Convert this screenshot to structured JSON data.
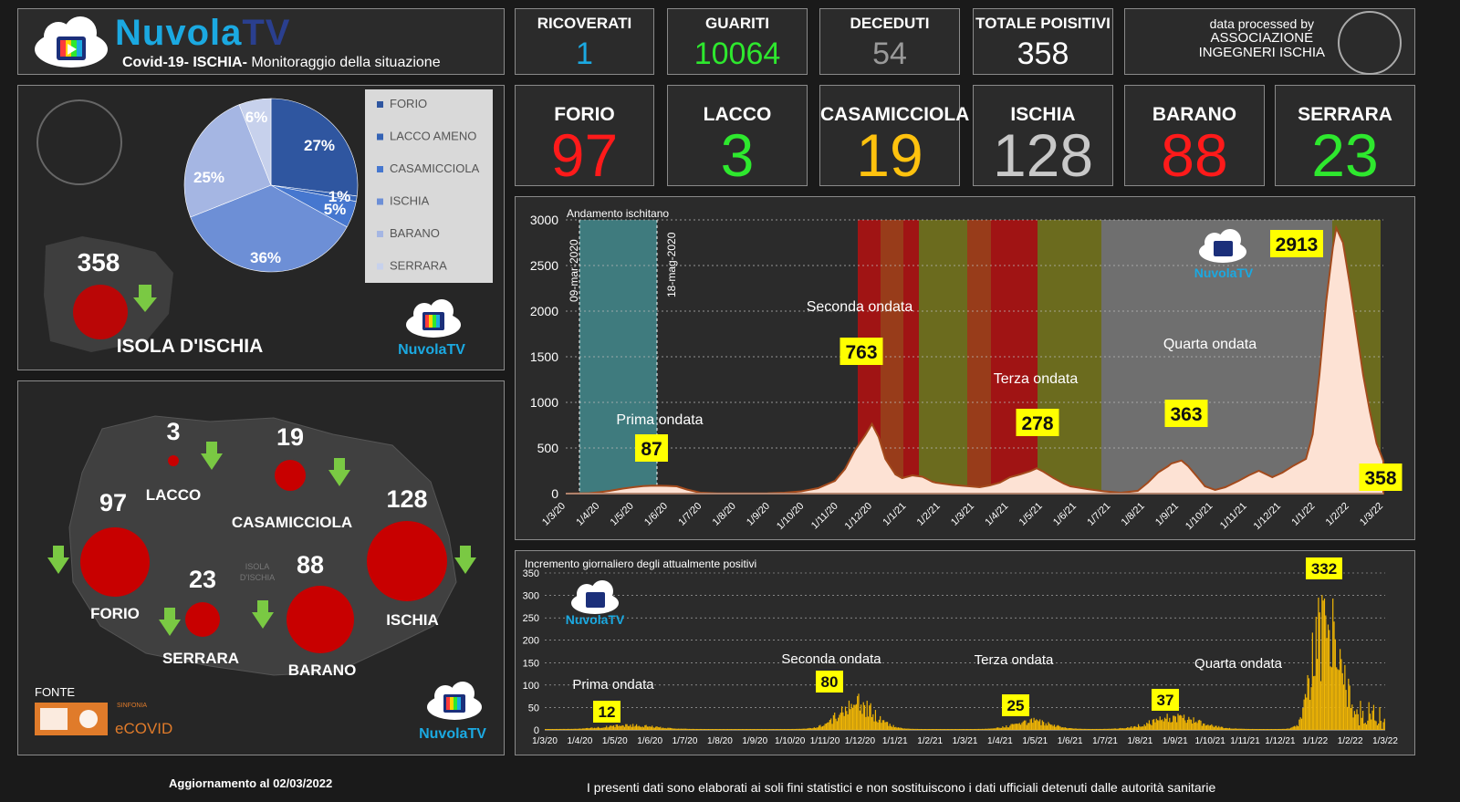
{
  "brand": {
    "name_part1": "Nuvola",
    "name_part2": "TV",
    "subtitle_bold": "Covid-19- ISCHIA-",
    "subtitle": " Monitoraggio della situazione",
    "small_logo": "NuvolaTV"
  },
  "stats": [
    {
      "label": "RICOVERATI",
      "value": "1",
      "color": "#1ba9e1"
    },
    {
      "label": "GUARITI",
      "value": "10064",
      "color": "#2ee82e"
    },
    {
      "label": "DECEDUTI",
      "value": "54",
      "color": "#9a9a9a"
    },
    {
      "label": "TOTALE POISITIVI",
      "value": "358",
      "color": "#ffffff"
    }
  ],
  "processed": {
    "line1": "data processed by",
    "line2": "ASSOCIAZIONE",
    "line3": "INGEGNERI ISCHIA"
  },
  "towns": [
    {
      "label": "FORIO",
      "value": "97",
      "color": "#ff1a1a"
    },
    {
      "label": "LACCO",
      "value": "3",
      "color": "#2ee82e"
    },
    {
      "label": "CASAMICCIOLA",
      "value": "19",
      "color": "#ffc20e"
    },
    {
      "label": "ISCHIA",
      "value": "128",
      "color": "#c8c8c8"
    },
    {
      "label": "BARANO",
      "value": "88",
      "color": "#ff1a1a"
    },
    {
      "label": "SERRARA",
      "value": "23",
      "color": "#2ee82e"
    }
  ],
  "pie_panel": {
    "total": "358",
    "island_label": "ISOLA D'ISCHIA",
    "legend": [
      "FORIO",
      "LACCO AMENO",
      "CASAMICCIOLA",
      "ISCHIA",
      "BARANO",
      "SERRARA"
    ],
    "slice_labels": [
      "27%",
      "1%",
      "5%",
      "36%",
      "25%",
      "6%"
    ]
  },
  "map_panel": {
    "towns": [
      {
        "name": "LACCO",
        "value": "3"
      },
      {
        "name": "CASAMICCIOLA",
        "value": "19"
      },
      {
        "name": "FORIO",
        "value": "97"
      },
      {
        "name": "ISCHIA",
        "value": "128"
      },
      {
        "name": "SERRARA",
        "value": "23"
      },
      {
        "name": "BARANO",
        "value": "88"
      }
    ],
    "map_text": "ISOLA\nD'ISCHIA",
    "source_label": "FONTE",
    "source_name": "eCOVID",
    "source_small": "SINFONIA"
  },
  "chart_data": [
    {
      "type": "area",
      "title": "Andamento ischitano",
      "ylim": [
        0,
        3000
      ],
      "yticks": [
        0,
        500,
        1000,
        1500,
        2000,
        2500,
        3000
      ],
      "xticks": [
        "1/3/20",
        "1/4/20",
        "1/5/20",
        "1/6/20",
        "1/7/20",
        "1/8/20",
        "1/9/20",
        "1/10/20",
        "1/11/20",
        "1/12/20",
        "1/1/21",
        "1/2/21",
        "1/3/21",
        "1/4/21",
        "1/5/21",
        "1/6/21",
        "1/7/21",
        "1/8/21",
        "1/9/21",
        "1/10/21",
        "1/11/21",
        "1/12/21",
        "1/1/22",
        "1/2/22",
        "1/3/22"
      ],
      "series": [
        {
          "points": [
            [
              0,
              0
            ],
            [
              0.3,
              2
            ],
            [
              0.7,
              5
            ],
            [
              1,
              15
            ],
            [
              1.3,
              30
            ],
            [
              1.7,
              55
            ],
            [
              2,
              70
            ],
            [
              2.3,
              83
            ],
            [
              2.6,
              87
            ],
            [
              3,
              85
            ],
            [
              3.3,
              80
            ],
            [
              3.6,
              45
            ],
            [
              4,
              10
            ],
            [
              4.5,
              3
            ],
            [
              5,
              2
            ],
            [
              6,
              4
            ],
            [
              6.5,
              10
            ],
            [
              7,
              25
            ],
            [
              7.5,
              60
            ],
            [
              8,
              140
            ],
            [
              8.3,
              270
            ],
            [
              8.6,
              480
            ],
            [
              8.9,
              640
            ],
            [
              9.1,
              763
            ],
            [
              9.3,
              620
            ],
            [
              9.5,
              380
            ],
            [
              9.8,
              210
            ],
            [
              10,
              170
            ],
            [
              10.3,
              200
            ],
            [
              10.6,
              185
            ],
            [
              10.9,
              130
            ],
            [
              11,
              120
            ],
            [
              11.5,
              95
            ],
            [
              12,
              80
            ],
            [
              12.3,
              70
            ],
            [
              12.6,
              90
            ],
            [
              12.9,
              120
            ],
            [
              13.2,
              180
            ],
            [
              13.5,
              210
            ],
            [
              13.8,
              245
            ],
            [
              14,
              278
            ],
            [
              14.2,
              240
            ],
            [
              14.5,
              170
            ],
            [
              14.8,
              110
            ],
            [
              15,
              80
            ],
            [
              15.5,
              50
            ],
            [
              16,
              25
            ],
            [
              16.5,
              10
            ],
            [
              17,
              30
            ],
            [
              17.3,
              120
            ],
            [
              17.6,
              230
            ],
            [
              17.9,
              300
            ],
            [
              18,
              330
            ],
            [
              18.3,
              363
            ],
            [
              18.5,
              300
            ],
            [
              18.8,
              170
            ],
            [
              19,
              80
            ],
            [
              19.3,
              40
            ],
            [
              19.6,
              70
            ],
            [
              20,
              140
            ],
            [
              20.3,
              200
            ],
            [
              20.6,
              250
            ],
            [
              21,
              180
            ],
            [
              21.3,
              230
            ],
            [
              21.6,
              300
            ],
            [
              22,
              380
            ],
            [
              22.2,
              650
            ],
            [
              22.4,
              1300
            ],
            [
              22.6,
              2100
            ],
            [
              22.8,
              2700
            ],
            [
              22.9,
              2913
            ],
            [
              23.1,
              2750
            ],
            [
              23.3,
              2300
            ],
            [
              23.5,
              1800
            ],
            [
              23.7,
              1300
            ],
            [
              23.9,
              900
            ],
            [
              24.1,
              550
            ],
            [
              24.3,
              358
            ]
          ]
        }
      ],
      "bands": [
        {
          "from": "09-mar-2020",
          "to": "18-mag-2020"
        }
      ],
      "annotations": [
        {
          "label": "Prima ondata",
          "value": "87"
        },
        {
          "label": "Seconda ondata",
          "value": "763"
        },
        {
          "label": "Terza ondata",
          "value": "278"
        },
        {
          "label": "Quarta ondata",
          "value": "363"
        },
        {
          "value": "2913"
        },
        {
          "value": "358"
        }
      ],
      "band_labels": [
        "09-mar-2020",
        "18-mag-2020"
      ]
    },
    {
      "type": "bar",
      "title": "Incremento giornaliero degli attualmente positivi",
      "ylim": [
        0,
        350
      ],
      "yticks": [
        0,
        50,
        100,
        150,
        200,
        250,
        300,
        350
      ],
      "xticks": [
        "1/3/20",
        "1/4/20",
        "1/5/20",
        "1/6/20",
        "1/7/20",
        "1/8/20",
        "1/9/20",
        "1/10/20",
        "1/11/20",
        "1/12/20",
        "1/1/21",
        "1/2/21",
        "1/3/21",
        "1/4/21",
        "1/5/21",
        "1/6/21",
        "1/7/21",
        "1/8/21",
        "1/9/21",
        "1/10/21",
        "1/11/21",
        "1/12/21",
        "1/1/22",
        "1/2/22",
        "1/3/22"
      ],
      "annotations": [
        {
          "label": "Prima ondata",
          "value": "12"
        },
        {
          "label": "Seconda ondata",
          "value": "80"
        },
        {
          "label": "Terza ondata",
          "value": "25"
        },
        {
          "label": "Quarta ondata",
          "value": "37"
        },
        {
          "value": "332"
        }
      ]
    }
  ],
  "footer": {
    "update": "Aggiornamento al  02/03/2022",
    "disclaimer": "I presenti dati sono elaborati ai soli fini statistici e non sostituiscono i dati ufficiali detenuti dalle autorità sanitarie"
  }
}
